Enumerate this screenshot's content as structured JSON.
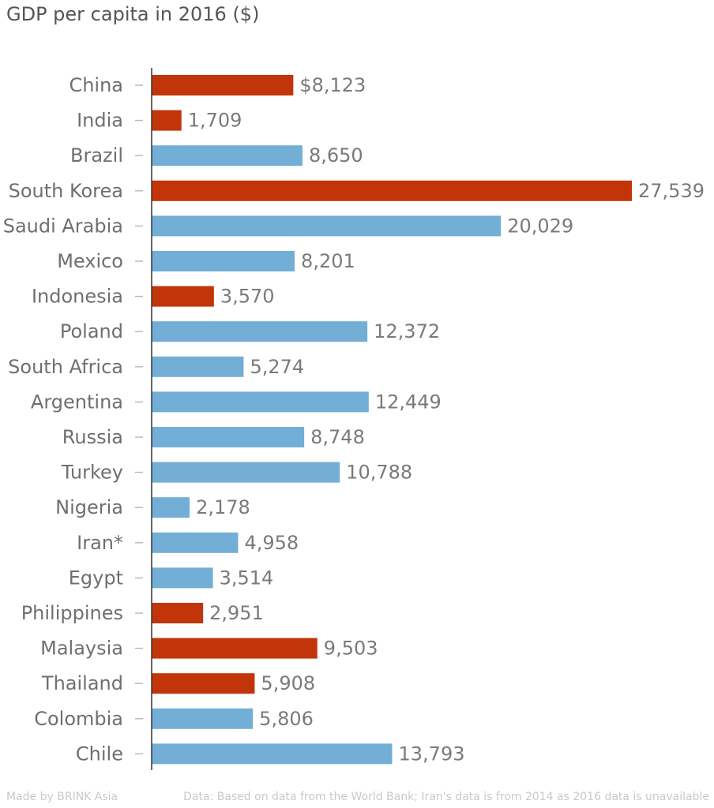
{
  "chart_data": {
    "type": "bar",
    "orientation": "horizontal",
    "title": "GDP per capita in 2016 ($)",
    "categories": [
      "China",
      "India",
      "Brazil",
      "South Korea",
      "Saudi Arabia",
      "Mexico",
      "Indonesia",
      "Poland",
      "South Africa",
      "Argentina",
      "Russia",
      "Turkey",
      "Nigeria",
      "Iran*",
      "Egypt",
      "Philippines",
      "Malaysia",
      "Thailand",
      "Colombia",
      "Chile"
    ],
    "values": [
      8123,
      1709,
      8650,
      27539,
      20029,
      8201,
      3570,
      12372,
      5274,
      12449,
      8748,
      10788,
      2178,
      4958,
      3514,
      2951,
      9503,
      5908,
      5806,
      13793
    ],
    "value_labels": [
      "$8,123",
      "1,709",
      "8,650",
      "27,539",
      "20,029",
      "8,201",
      "3,570",
      "12,372",
      "5,274",
      "12,449",
      "8,748",
      "10,788",
      "2,178",
      "4,958",
      "3,514",
      "2,951",
      "9,503",
      "5,908",
      "5,806",
      "13,793"
    ],
    "highlight": [
      true,
      true,
      false,
      true,
      false,
      false,
      true,
      false,
      false,
      false,
      false,
      false,
      false,
      false,
      false,
      true,
      true,
      true,
      false,
      false
    ],
    "colors": {
      "highlight": "#c23409",
      "default": "#73aed6",
      "label": "#6f6f6f",
      "value_label": "#7a7a7a",
      "axis": "#333333",
      "tick": "#bbbbbb"
    },
    "xlim": [
      0,
      27539
    ],
    "grid": false,
    "legend": "none"
  },
  "footer": {
    "credit": "Made by BRINK Asia",
    "source": "Data: Based on data from the World Bank; Iran's data is from 2014 as 2016 data is unavailable"
  }
}
